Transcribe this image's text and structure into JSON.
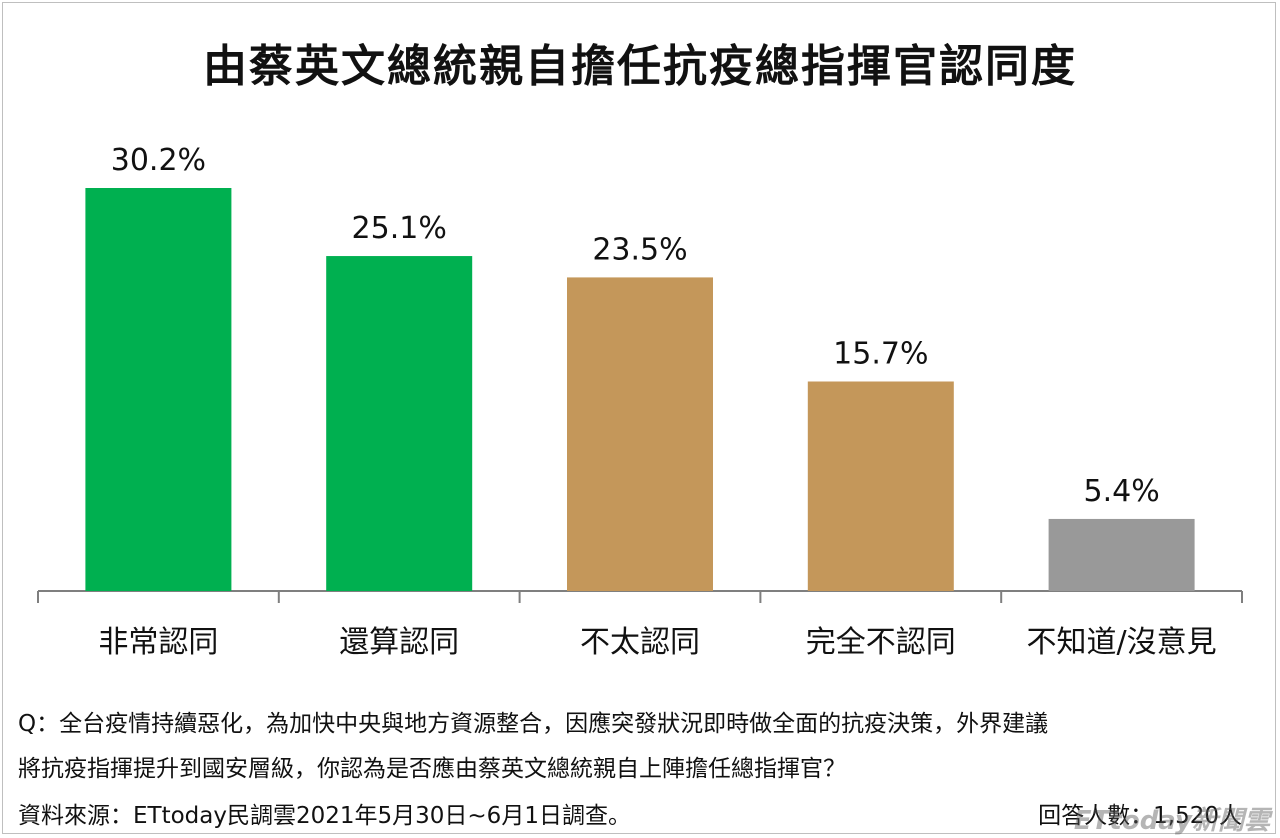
{
  "chart_data": {
    "type": "bar",
    "title": "由蔡英文總統親自擔任抗疫總指揮官認同度",
    "categories": [
      "非常認同",
      "還算認同",
      "不太認同",
      "完全不認同",
      "不知道/沒意見"
    ],
    "values": [
      30.2,
      25.1,
      23.5,
      15.7,
      5.4
    ],
    "value_labels": [
      "30.2%",
      "25.1%",
      "23.5%",
      "15.7%",
      "5.4%"
    ],
    "bar_colors": [
      "#00b050",
      "#00b050",
      "#c4975a",
      "#c4975a",
      "#999999"
    ],
    "xlabel": "",
    "ylabel": "",
    "ylim": [
      0,
      30.2
    ],
    "grid": false
  },
  "question_line1": "Q：全台疫情持續惡化，為加快中央與地方資源整合，因應突發狀況即時做全面的抗疫決策，外界建議",
  "question_line2": "將抗疫指揮提升到國安層級，你認為是否應由蔡英文總統親自上陣擔任總指揮官？",
  "source": "資料來源：ETtoday民調雲2021年5月30日~6月1日調查。",
  "respondents": "回答人數：1,520人",
  "watermark": "ETtoday新聞雲"
}
